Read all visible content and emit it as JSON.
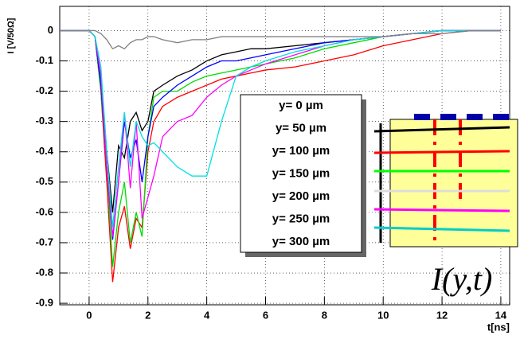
{
  "chart_data": {
    "type": "line",
    "y_label": "I [V/50Ω]",
    "x_label": "t[ns]",
    "annotation": "I(y,t)",
    "x": [
      -1,
      0,
      0.2,
      0.4,
      0.6,
      0.8,
      1.0,
      1.2,
      1.4,
      1.6,
      1.8,
      2.0,
      2.2,
      2.5,
      3,
      3.5,
      4,
      4.5,
      5,
      5.5,
      6,
      7,
      8,
      9,
      10,
      11,
      12,
      13,
      14
    ],
    "series": [
      {
        "name": "y= 0  µm",
        "color": "#000000",
        "values": [
          0,
          0,
          -0.02,
          -0.15,
          -0.4,
          -0.6,
          -0.38,
          -0.42,
          -0.3,
          -0.27,
          -0.33,
          -0.3,
          -0.2,
          -0.18,
          -0.15,
          -0.13,
          -0.1,
          -0.08,
          -0.07,
          -0.06,
          -0.06,
          -0.05,
          -0.04,
          -0.03,
          -0.02,
          -0.01,
          0,
          0,
          0
        ]
      },
      {
        "name": "y= 50  µm",
        "color": "#ff0000",
        "values": [
          0,
          0,
          -0.02,
          -0.2,
          -0.5,
          -0.83,
          -0.65,
          -0.58,
          -0.72,
          -0.62,
          -0.65,
          -0.4,
          -0.3,
          -0.25,
          -0.22,
          -0.2,
          -0.18,
          -0.16,
          -0.15,
          -0.14,
          -0.13,
          -0.12,
          -0.1,
          -0.08,
          -0.05,
          -0.03,
          -0.01,
          0,
          0
        ]
      },
      {
        "name": "y= 100  µm",
        "color": "#00dd00",
        "values": [
          0,
          0,
          -0.02,
          -0.2,
          -0.45,
          -0.78,
          -0.6,
          -0.5,
          -0.7,
          -0.6,
          -0.68,
          -0.35,
          -0.22,
          -0.2,
          -0.2,
          -0.17,
          -0.15,
          -0.14,
          -0.13,
          -0.12,
          -0.11,
          -0.09,
          -0.06,
          -0.04,
          -0.02,
          -0.01,
          0,
          0,
          0
        ]
      },
      {
        "name": "y= 150  µm",
        "color": "#0000ff",
        "values": [
          0,
          0,
          -0.02,
          -0.18,
          -0.45,
          -0.69,
          -0.5,
          -0.3,
          -0.42,
          -0.36,
          -0.5,
          -0.35,
          -0.25,
          -0.22,
          -0.18,
          -0.15,
          -0.12,
          -0.1,
          -0.1,
          -0.09,
          -0.08,
          -0.06,
          -0.04,
          -0.03,
          -0.02,
          -0.01,
          0,
          0,
          0
        ]
      },
      {
        "name": "y= 200  µm",
        "color": "#ff00ff",
        "values": [
          0,
          0,
          -0.02,
          -0.15,
          -0.45,
          -0.68,
          -0.5,
          -0.27,
          -0.52,
          -0.3,
          -0.62,
          -0.55,
          -0.48,
          -0.35,
          -0.3,
          -0.28,
          -0.22,
          -0.18,
          -0.15,
          -0.13,
          -0.11,
          -0.08,
          -0.05,
          -0.03,
          -0.02,
          -0.01,
          0,
          0,
          0
        ]
      },
      {
        "name": "y= 250  µm",
        "color": "#00e0e0",
        "values": [
          0,
          0,
          -0.02,
          -0.12,
          -0.4,
          -0.65,
          -0.45,
          -0.27,
          -0.45,
          -0.3,
          -0.35,
          -0.38,
          -0.37,
          -0.4,
          -0.45,
          -0.48,
          -0.48,
          -0.3,
          -0.15,
          -0.12,
          -0.1,
          -0.07,
          -0.05,
          -0.03,
          -0.02,
          -0.01,
          0,
          0,
          0
        ]
      },
      {
        "name": "y= 300  µm",
        "color": "#808080",
        "values": [
          0,
          0,
          0,
          -0.01,
          -0.03,
          -0.06,
          -0.05,
          -0.06,
          -0.04,
          -0.03,
          -0.03,
          -0.02,
          -0.02,
          -0.03,
          -0.04,
          -0.03,
          -0.03,
          -0.02,
          -0.02,
          -0.02,
          -0.02,
          -0.02,
          -0.02,
          -0.02,
          -0.02,
          -0.01,
          -0.01,
          0,
          0
        ]
      }
    ],
    "xlim": [
      -1,
      14.3
    ],
    "ylim": [
      -0.905,
      0.08
    ],
    "xticks": [
      0,
      2,
      4,
      6,
      8,
      10,
      12,
      14
    ],
    "yticks": [
      0,
      -0.1,
      -0.2,
      -0.3,
      -0.4,
      -0.5,
      -0.6,
      -0.7,
      -0.8,
      -0.9
    ],
    "grid": true
  }
}
